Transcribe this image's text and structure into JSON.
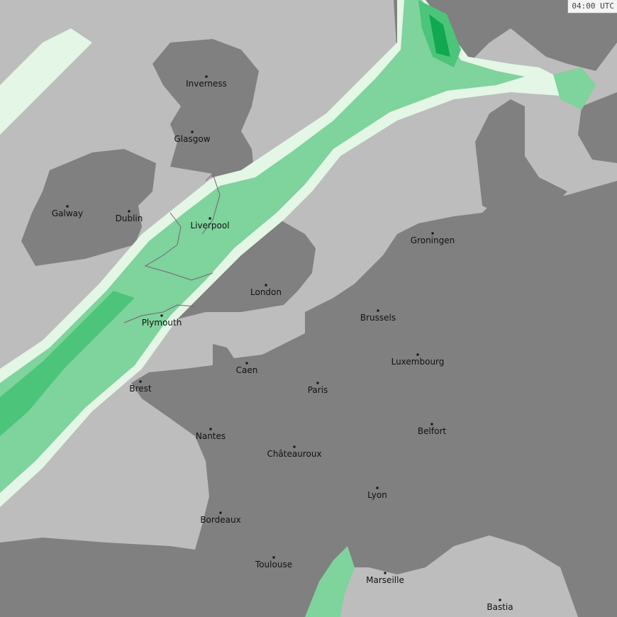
{
  "timestamp": "04:00 UTC",
  "colors": {
    "sea": "#bdbdbd",
    "land": "#808080",
    "coastline_overlay": "#7a5f7a",
    "rain_trace": "#e4f6e6",
    "rain_light": "#7fd39c",
    "rain_moderate": "#4cc47a",
    "rain_heavy": "#10a850"
  },
  "cities": [
    {
      "name": "Inverness"
    },
    {
      "name": "Glasgow"
    },
    {
      "name": "Galway"
    },
    {
      "name": "Dublin"
    },
    {
      "name": "Liverpool"
    },
    {
      "name": "London"
    },
    {
      "name": "Plymouth"
    },
    {
      "name": "Groningen"
    },
    {
      "name": "Brussels"
    },
    {
      "name": "Caen"
    },
    {
      "name": "Brest"
    },
    {
      "name": "Paris"
    },
    {
      "name": "Luxembourg"
    },
    {
      "name": "Nantes"
    },
    {
      "name": "Belfort"
    },
    {
      "name": "Châteauroux"
    },
    {
      "name": "Lyon"
    },
    {
      "name": "Bordeaux"
    },
    {
      "name": "Toulouse"
    },
    {
      "name": "Marseille"
    },
    {
      "name": "Bastia"
    }
  ]
}
